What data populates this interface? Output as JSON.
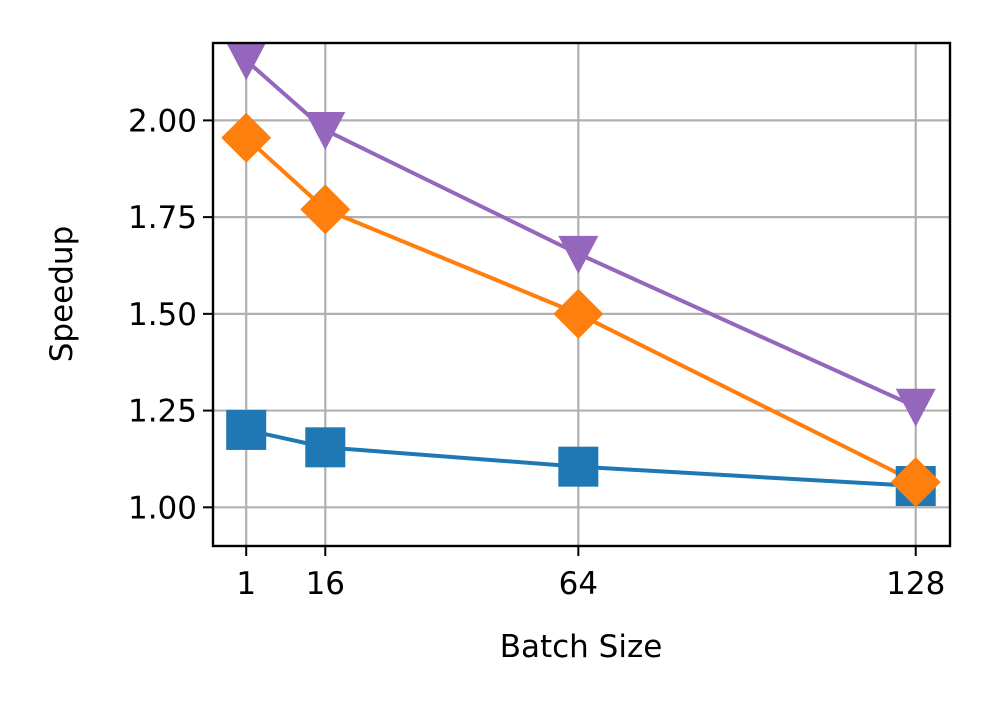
{
  "chart_data": {
    "type": "line",
    "title": "",
    "xlabel": "Batch Size",
    "ylabel": "Speedup",
    "x": [
      1,
      16,
      64,
      128
    ],
    "x_tick_labels": [
      "1",
      "16",
      "64",
      "128"
    ],
    "y_ticks": [
      1.0,
      1.25,
      1.5,
      1.75,
      2.0
    ],
    "y_tick_labels": [
      "1.00",
      "1.25",
      "1.50",
      "1.75",
      "2.00"
    ],
    "xlim": [
      -5.3,
      134.5
    ],
    "ylim": [
      0.9,
      2.2
    ],
    "grid": true,
    "legend": "none",
    "series": [
      {
        "marker": "square",
        "color": "#1f77b4",
        "values": [
          1.2,
          1.155,
          1.105,
          1.055
        ]
      },
      {
        "marker": "diamond",
        "color": "#ff7f0e",
        "values": [
          1.955,
          1.77,
          1.5,
          1.065
        ]
      },
      {
        "marker": "triangle-down",
        "color": "#9467bd",
        "values": [
          2.155,
          1.975,
          1.655,
          1.26
        ]
      }
    ]
  }
}
